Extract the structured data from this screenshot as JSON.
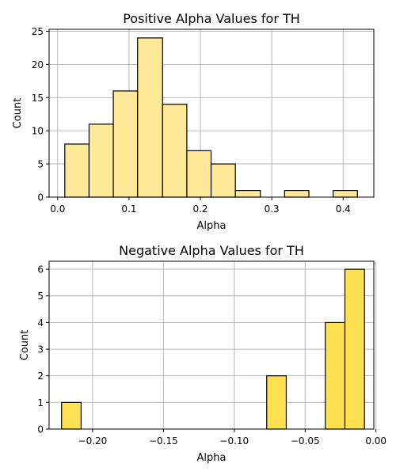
{
  "chart_data": [
    {
      "type": "bar",
      "title": "Positive Alpha Values for TH",
      "xlabel": "Alpha",
      "ylabel": "Count",
      "color": "#ffe999",
      "grid": true,
      "xlim": [
        -0.012,
        0.443
      ],
      "ylim": [
        0,
        25.3
      ],
      "xticks": [
        0.0,
        0.1,
        0.2,
        0.3,
        0.4
      ],
      "xtick_labels": [
        "0.0",
        "0.1",
        "0.2",
        "0.3",
        "0.4"
      ],
      "yticks": [
        0,
        5,
        10,
        15,
        20,
        25
      ],
      "ytick_labels": [
        "0",
        "5",
        "10",
        "15",
        "20",
        "25"
      ],
      "bins": [
        {
          "x0": 0.01,
          "x1": 0.044,
          "count": 8
        },
        {
          "x0": 0.044,
          "x1": 0.078,
          "count": 11
        },
        {
          "x0": 0.078,
          "x1": 0.112,
          "count": 16
        },
        {
          "x0": 0.112,
          "x1": 0.147,
          "count": 24
        },
        {
          "x0": 0.147,
          "x1": 0.181,
          "count": 14
        },
        {
          "x0": 0.181,
          "x1": 0.215,
          "count": 7
        },
        {
          "x0": 0.215,
          "x1": 0.249,
          "count": 5
        },
        {
          "x0": 0.249,
          "x1": 0.284,
          "count": 1
        },
        {
          "x0": 0.318,
          "x1": 0.352,
          "count": 1
        },
        {
          "x0": 0.386,
          "x1": 0.42,
          "count": 1
        }
      ]
    },
    {
      "type": "bar",
      "title": "Negative Alpha Values for TH",
      "xlabel": "Alpha",
      "ylabel": "Count",
      "color": "#ffe050",
      "grid": true,
      "xlim": [
        -0.2307,
        -0.0015
      ],
      "ylim": [
        0,
        6.3
      ],
      "xticks": [
        -0.2,
        -0.15,
        -0.1,
        -0.05,
        0.0
      ],
      "xtick_labels": [
        "−0.20",
        "−0.15",
        "−0.10",
        "−0.05",
        "0.00"
      ],
      "yticks": [
        0,
        1,
        2,
        3,
        4,
        5,
        6
      ],
      "ytick_labels": [
        "0",
        "1",
        "2",
        "3",
        "4",
        "5",
        "6"
      ],
      "bins": [
        {
          "x0": -0.2219,
          "x1": -0.2081,
          "count": 1
        },
        {
          "x0": -0.0771,
          "x1": -0.0633,
          "count": 2
        },
        {
          "x0": -0.0357,
          "x1": -0.0219,
          "count": 4
        },
        {
          "x0": -0.0219,
          "x1": -0.0081,
          "count": 6
        }
      ]
    }
  ]
}
